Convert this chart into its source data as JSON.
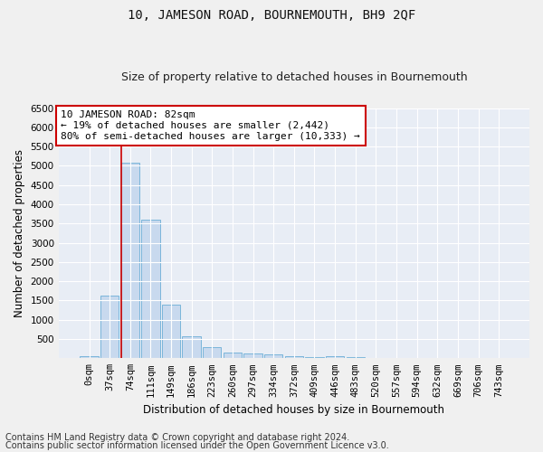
{
  "title": "10, JAMESON ROAD, BOURNEMOUTH, BH9 2QF",
  "subtitle": "Size of property relative to detached houses in Bournemouth",
  "xlabel": "Distribution of detached houses by size in Bournemouth",
  "ylabel": "Number of detached properties",
  "bar_labels": [
    "0sqm",
    "37sqm",
    "74sqm",
    "111sqm",
    "149sqm",
    "186sqm",
    "223sqm",
    "260sqm",
    "297sqm",
    "334sqm",
    "372sqm",
    "409sqm",
    "446sqm",
    "483sqm",
    "520sqm",
    "557sqm",
    "594sqm",
    "632sqm",
    "669sqm",
    "706sqm",
    "743sqm"
  ],
  "bar_values": [
    60,
    1620,
    5080,
    3600,
    1400,
    580,
    290,
    155,
    120,
    90,
    50,
    40,
    60,
    20,
    15,
    10,
    8,
    5,
    5,
    5,
    5
  ],
  "bar_color": "#c8d9ee",
  "bar_edge_color": "#6baed6",
  "ylim": [
    0,
    6500
  ],
  "yticks": [
    0,
    500,
    1000,
    1500,
    2000,
    2500,
    3000,
    3500,
    4000,
    4500,
    5000,
    5500,
    6000,
    6500
  ],
  "red_line_x": 1.55,
  "annotation_text": "10 JAMESON ROAD: 82sqm\n← 19% of detached houses are smaller (2,442)\n80% of semi-detached houses are larger (10,333) →",
  "annotation_box_color": "#ffffff",
  "annotation_border_color": "#cc0000",
  "footnote1": "Contains HM Land Registry data © Crown copyright and database right 2024.",
  "footnote2": "Contains public sector information licensed under the Open Government Licence v3.0.",
  "fig_bg_color": "#f0f0f0",
  "plot_bg_color": "#e8edf5",
  "grid_color": "#ffffff",
  "title_fontsize": 10,
  "subtitle_fontsize": 9,
  "axis_label_fontsize": 8.5,
  "tick_fontsize": 7.5,
  "annotation_fontsize": 8,
  "footnote_fontsize": 7
}
